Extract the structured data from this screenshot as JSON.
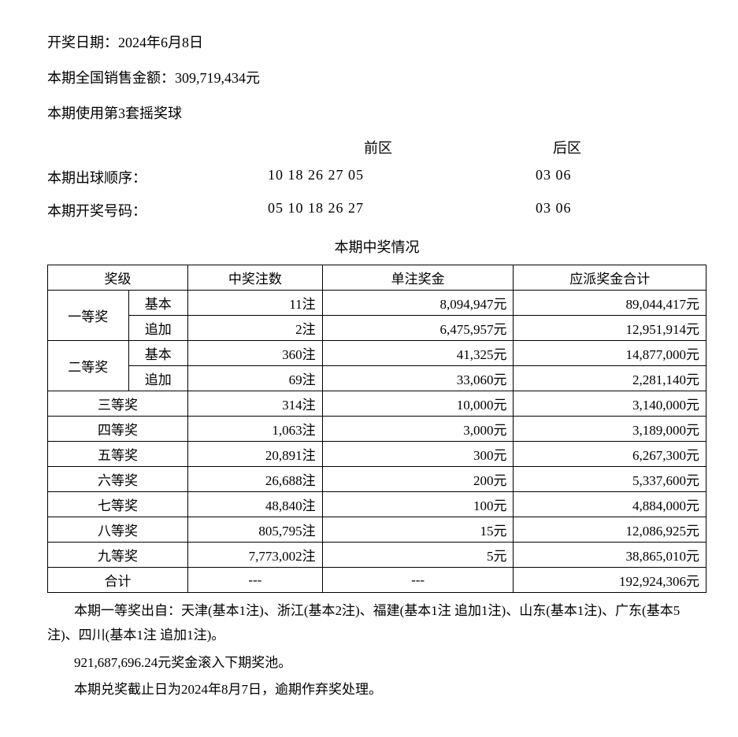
{
  "header": {
    "draw_date_label": "开奖日期：",
    "draw_date": "2024年6月8日",
    "sales_label": "本期全国销售金额：",
    "sales_amount": "309,719,434元",
    "ball_set": "本期使用第3套摇奖球"
  },
  "zones": {
    "front_label": "前区",
    "back_label": "后区"
  },
  "draw_order": {
    "label": "本期出球顺序：",
    "front": "10 18 26 27 05",
    "back": "03 06"
  },
  "winning_numbers": {
    "label": "本期开奖号码：",
    "front": "05 10 18 26 27",
    "back": "03 06"
  },
  "table": {
    "title": "本期中奖情况",
    "headers": {
      "tier": "奖级",
      "count": "中奖注数",
      "unit_prize": "单注奖金",
      "total_prize": "应派奖金合计"
    },
    "sub_labels": {
      "basic": "基本",
      "add": "追加"
    },
    "tiers": {
      "first": "一等奖",
      "second": "二等奖",
      "third": "三等奖",
      "fourth": "四等奖",
      "fifth": "五等奖",
      "sixth": "六等奖",
      "seventh": "七等奖",
      "eighth": "八等奖",
      "ninth": "九等奖",
      "total": "合计"
    },
    "rows": {
      "first_basic": {
        "count": "11注",
        "prize": "8,094,947元",
        "total": "89,044,417元"
      },
      "first_add": {
        "count": "2注",
        "prize": "6,475,957元",
        "total": "12,951,914元"
      },
      "second_basic": {
        "count": "360注",
        "prize": "41,325元",
        "total": "14,877,000元"
      },
      "second_add": {
        "count": "69注",
        "prize": "33,060元",
        "total": "2,281,140元"
      },
      "third": {
        "count": "314注",
        "prize": "10,000元",
        "total": "3,140,000元"
      },
      "fourth": {
        "count": "1,063注",
        "prize": "3,000元",
        "total": "3,189,000元"
      },
      "fifth": {
        "count": "20,891注",
        "prize": "300元",
        "total": "6,267,300元"
      },
      "sixth": {
        "count": "26,688注",
        "prize": "200元",
        "total": "5,337,600元"
      },
      "seventh": {
        "count": "48,840注",
        "prize": "100元",
        "total": "4,884,000元"
      },
      "eighth": {
        "count": "805,795注",
        "prize": "15元",
        "total": "12,086,925元"
      },
      "ninth": {
        "count": "7,773,002注",
        "prize": "5元",
        "total": "38,865,010元"
      },
      "total_row": {
        "count": "---",
        "prize": "---",
        "total": "192,924,306元"
      }
    }
  },
  "footer": {
    "winners_location": "本期一等奖出自：天津(基本1注)、浙江(基本2注)、福建(基本1注 追加1注)、山东(基本1注)、广东(基本5注)、四川(基本1注 追加1注)。",
    "rollover": "921,687,696.24元奖金滚入下期奖池。",
    "deadline": "本期兑奖截止日为2024年8月7日，逾期作弃奖处理。"
  },
  "styling": {
    "font_family": "SimSun",
    "font_size_base": 18,
    "text_color": "#000000",
    "background_color": "#ffffff",
    "border_color": "#000000"
  }
}
